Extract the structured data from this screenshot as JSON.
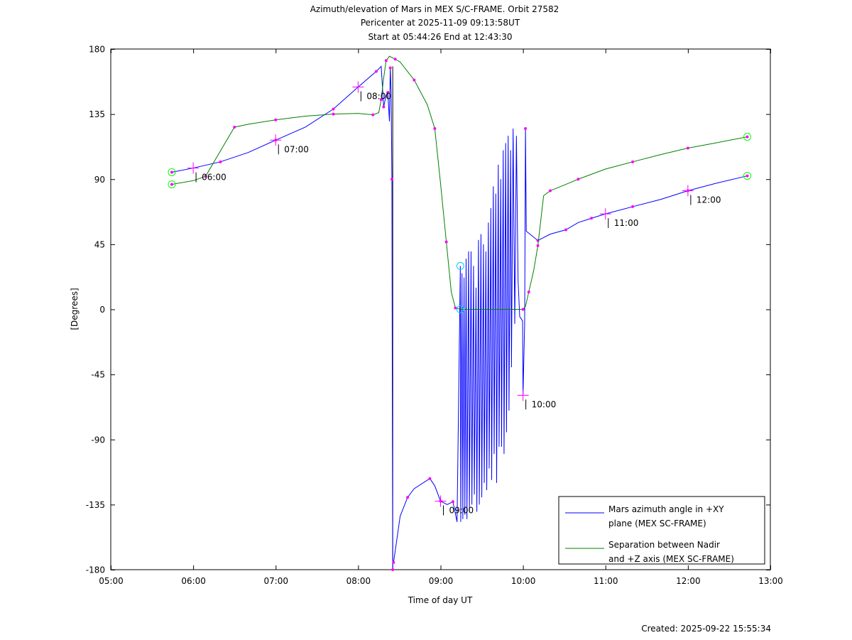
{
  "chart_data": {
    "type": "line",
    "title": [
      "Azimuth/elevation of Mars in MEX S/C-FRAME.  Orbit 27582",
      "Pericenter at 2025-11-09 09:13:58UT",
      "Start at 05:44:26 End at 12:43:30"
    ],
    "xlabel": "Time of day UT",
    "ylabel": "[Degrees]",
    "xlim": [
      5,
      13
    ],
    "ylim": [
      -180,
      180
    ],
    "xticks": [
      5,
      6,
      7,
      8,
      9,
      10,
      11,
      12,
      13
    ],
    "xtick_labels": [
      "05:00",
      "06:00",
      "07:00",
      "08:00",
      "09:00",
      "10:00",
      "11:00",
      "12:00",
      "13:00"
    ],
    "yticks": [
      180,
      135,
      90,
      45,
      0,
      -45,
      -90,
      -135,
      -180
    ],
    "ytick_labels": [
      "180",
      "135",
      "90",
      "45",
      "0",
      "-45",
      "-90",
      "-135",
      "-180"
    ],
    "legend_position": "bottom-right",
    "series": [
      {
        "name": "Mars azimuth angle in +XY plane (MEX SC-FRAME)",
        "legend": [
          "Mars azimuth angle in +XY",
          "plane (MEX SC-FRAME)"
        ],
        "color": "#0000ff",
        "segments": [
          [
            [
              5.74,
              94.8
            ],
            [
              6.0,
              97.7
            ],
            [
              6.33,
              102
            ],
            [
              6.67,
              108.5
            ],
            [
              7.0,
              117
            ],
            [
              7.36,
              126
            ],
            [
              7.7,
              138.5
            ],
            [
              8.0,
              153.7
            ],
            [
              8.22,
              164.5
            ],
            [
              8.28,
              168
            ],
            [
              8.31,
              140
            ],
            [
              8.34,
              148
            ],
            [
              8.36,
              150
            ],
            [
              8.38,
              130
            ],
            [
              8.39,
              167
            ],
            [
              8.4,
              150
            ],
            [
              8.41,
              90
            ],
            [
              8.415,
              -60
            ],
            [
              8.42,
              -180
            ]
          ],
          [
            [
              8.43,
              -175
            ],
            [
              8.51,
              -143
            ],
            [
              8.6,
              -130
            ],
            [
              8.68,
              -124
            ],
            [
              8.87,
              -117
            ],
            [
              8.93,
              -122
            ],
            [
              9.0,
              -132.6
            ],
            [
              9.08,
              -135
            ],
            [
              9.15,
              -133
            ],
            [
              9.2,
              -147
            ],
            [
              9.24,
              30
            ],
            [
              9.245,
              -147
            ],
            [
              9.26,
              25
            ],
            [
              9.27,
              -145
            ],
            [
              9.285,
              22
            ],
            [
              9.295,
              -142
            ],
            [
              9.31,
              35
            ],
            [
              9.32,
              -145
            ],
            [
              9.34,
              40
            ],
            [
              9.35,
              -140
            ],
            [
              9.37,
              40
            ],
            [
              9.38,
              -135
            ],
            [
              9.4,
              30
            ],
            [
              9.41,
              -128
            ],
            [
              9.43,
              15
            ],
            [
              9.44,
              -140
            ],
            [
              9.46,
              48
            ],
            [
              9.47,
              -135
            ],
            [
              9.49,
              52
            ],
            [
              9.5,
              -130
            ],
            [
              9.52,
              45
            ],
            [
              9.53,
              -120
            ],
            [
              9.55,
              40
            ],
            [
              9.56,
              -125
            ],
            [
              9.58,
              60
            ],
            [
              9.59,
              -110
            ],
            [
              9.61,
              70
            ],
            [
              9.62,
              -118
            ],
            [
              9.64,
              85
            ],
            [
              9.65,
              -100
            ],
            [
              9.67,
              80
            ],
            [
              9.68,
              -120
            ],
            [
              9.7,
              100
            ],
            [
              9.71,
              -95
            ],
            [
              9.73,
              90
            ],
            [
              9.74,
              -95
            ],
            [
              9.76,
              110
            ],
            [
              9.77,
              -100
            ],
            [
              9.79,
              115
            ],
            [
              9.8,
              -85
            ],
            [
              9.82,
              120
            ],
            [
              9.83,
              -70
            ],
            [
              9.85,
              110
            ],
            [
              9.86,
              -40
            ],
            [
              9.88,
              125
            ],
            [
              9.9,
              -10
            ],
            [
              9.92,
              120
            ],
            [
              9.94,
              20
            ],
            [
              9.96,
              -5
            ],
            [
              9.995,
              -8
            ],
            [
              10.0,
              -59.4
            ],
            [
              10.02,
              -10
            ],
            [
              10.03,
              125
            ],
            [
              10.04,
              54
            ],
            [
              10.18,
              47.6
            ],
            [
              10.33,
              52
            ],
            [
              10.52,
              55
            ],
            [
              10.67,
              60
            ],
            [
              10.83,
              63
            ],
            [
              11.0,
              66
            ],
            [
              11.33,
              71
            ],
            [
              11.67,
              76
            ],
            [
              12.0,
              82
            ],
            [
              12.33,
              87
            ],
            [
              12.72,
              92.3
            ]
          ]
        ]
      },
      {
        "name": "Separation between Nadir and +Z axis (MEX SC-FRAME)",
        "legend": [
          "Separation between Nadir",
          "and +Z axis (MEX SC-FRAME)"
        ],
        "color": "#008000",
        "segments": [
          [
            [
              5.74,
              86.4
            ],
            [
              6.0,
              89
            ],
            [
              6.15,
              92
            ],
            [
              6.34,
              110.5
            ],
            [
              6.5,
              126
            ],
            [
              6.67,
              128
            ],
            [
              7.0,
              131
            ],
            [
              7.36,
              133.6
            ],
            [
              7.7,
              135
            ],
            [
              8.0,
              135.5
            ],
            [
              8.18,
              134.5
            ],
            [
              8.25,
              136
            ],
            [
              8.28,
              145
            ],
            [
              8.31,
              160
            ],
            [
              8.34,
              172
            ],
            [
              8.38,
              175
            ],
            [
              8.45,
              173
            ],
            [
              8.51,
              171
            ],
            [
              8.68,
              158.6
            ],
            [
              8.84,
              141.4
            ],
            [
              8.93,
              125
            ],
            [
              9.0,
              87
            ],
            [
              9.07,
              46.6
            ],
            [
              9.13,
              12
            ],
            [
              9.18,
              1
            ],
            [
              9.24,
              0
            ],
            [
              10.0,
              0
            ],
            [
              10.03,
              2
            ],
            [
              10.07,
              12
            ],
            [
              10.13,
              27
            ],
            [
              10.18,
              44
            ],
            [
              10.25,
              78.6
            ],
            [
              10.33,
              82
            ],
            [
              10.52,
              86.4
            ],
            [
              10.67,
              90
            ],
            [
              11.0,
              97
            ],
            [
              11.33,
              102
            ],
            [
              11.67,
              107
            ],
            [
              12.0,
              111.5
            ],
            [
              12.33,
              115
            ],
            [
              12.72,
              119.3
            ]
          ]
        ]
      }
    ],
    "time_marks": [
      {
        "label": "06:00",
        "t": 6.0,
        "deg": 97.7
      },
      {
        "label": "07:00",
        "t": 7.0,
        "deg": 117
      },
      {
        "label": "08:00",
        "t": 8.0,
        "deg": 153.7
      },
      {
        "label": "09:00",
        "t": 9.0,
        "deg": -132.6
      },
      {
        "label": "10:00",
        "t": 10.0,
        "deg": -59.4
      },
      {
        "label": "11:00",
        "t": 11.0,
        "deg": 66
      },
      {
        "label": "12:00",
        "t": 12.0,
        "deg": 82
      }
    ],
    "green_circles": [
      [
        5.74,
        94.8
      ],
      [
        5.74,
        86.4
      ],
      [
        12.72,
        92.3
      ],
      [
        12.72,
        119.3
      ]
    ],
    "cyan_circles": [
      [
        9.24,
        30
      ],
      [
        9.24,
        0
      ]
    ],
    "footer": "Created: 2025-09-22 15:55:34"
  }
}
